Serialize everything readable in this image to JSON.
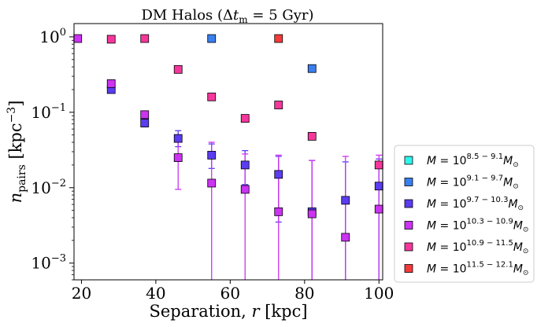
{
  "chart_data": {
    "type": "scatter",
    "title": "DM Halos (Δt_m = 5 Gyr)",
    "title_parts": {
      "pre": "DM Halos (Δ",
      "t": "t",
      "sub": "m",
      "post": " = 5 Gyr)"
    },
    "xlabel": "Separation, r [kpc]",
    "xlabel_parts": {
      "pre": "Separation, ",
      "var": "r",
      "post": " [kpc]"
    },
    "ylabel": "n_pairs [kpc^-3]",
    "ylabel_parts": {
      "var": "n",
      "sub": "pairs",
      "unit_pre": " [kpc",
      "sup": "−3",
      "unit_post": "]"
    },
    "xlim": [
      18,
      101
    ],
    "ylim": [
      0.0006,
      1.5
    ],
    "yscale": "log",
    "xticks": [
      20,
      40,
      60,
      80,
      100
    ],
    "yticks": [
      {
        "value": 0.001,
        "mant": "10",
        "exp": "−3"
      },
      {
        "value": 0.01,
        "mant": "10",
        "exp": "−2"
      },
      {
        "value": 0.1,
        "mant": "10",
        "exp": "−1"
      },
      {
        "value": 1,
        "mant": "10",
        "exp": "0"
      }
    ],
    "legend_position": "outside-right",
    "series": [
      {
        "name": "M = 10^8.5−9.1 M⊙",
        "exp": "8.5 − 9.1",
        "color": "#2ff5ee",
        "points": []
      },
      {
        "name": "M = 10^9.1−9.7 M⊙",
        "exp": "9.1 − 9.7",
        "color": "#3a7ff0",
        "points": [
          {
            "x": 55,
            "y": 0.95
          },
          {
            "x": 82,
            "y": 0.38
          }
        ]
      },
      {
        "name": "M = 10^9.7−10.3 M⊙",
        "exp": "9.7 − 10.3",
        "color": "#5b3cf0",
        "points": [
          {
            "x": 28,
            "y": 0.2
          },
          {
            "x": 37,
            "y": 0.072,
            "lo": 0.064,
            "hi": 0.082
          },
          {
            "x": 46,
            "y": 0.045,
            "lo": 0.035,
            "hi": 0.057
          },
          {
            "x": 55,
            "y": 0.027,
            "lo": 0.018,
            "hi": 0.038
          },
          {
            "x": 64,
            "y": 0.02,
            "lo": 0.011,
            "hi": 0.031
          },
          {
            "x": 73,
            "y": 0.015,
            "lo": 0.0035,
            "hi": 0.026
          },
          {
            "x": 82,
            "y": 0.0048,
            "lo": 0.0006,
            "hi": 0.023
          },
          {
            "x": 91,
            "y": 0.0068,
            "lo": 0.0006,
            "hi": 0.022
          },
          {
            "x": 100,
            "y": 0.0105,
            "lo": 0.0006,
            "hi": 0.024
          }
        ]
      },
      {
        "name": "M = 10^10.3−10.9 M⊙",
        "exp": "10.3 − 10.9",
        "color": "#cc33f2",
        "points": [
          {
            "x": 19,
            "y": 0.95
          },
          {
            "x": 28,
            "y": 0.24
          },
          {
            "x": 37,
            "y": 0.093
          },
          {
            "x": 46,
            "y": 0.025,
            "lo": 0.0095,
            "hi": 0.042
          },
          {
            "x": 55,
            "y": 0.0115,
            "lo": 0.0006,
            "hi": 0.04
          },
          {
            "x": 64,
            "y": 0.0095,
            "lo": 0.0006,
            "hi": 0.028
          },
          {
            "x": 73,
            "y": 0.0048,
            "lo": 0.0006,
            "hi": 0.027
          },
          {
            "x": 82,
            "y": 0.0045,
            "lo": 0.0006,
            "hi": 0.023
          },
          {
            "x": 91,
            "y": 0.0022,
            "lo": 0.0006,
            "hi": 0.026
          },
          {
            "x": 100,
            "y": 0.0052,
            "lo": 0.0006,
            "hi": 0.027
          }
        ]
      },
      {
        "name": "M = 10^10.9−11.5 M⊙",
        "exp": "10.9 − 11.5",
        "color": "#f5379c",
        "points": [
          {
            "x": 28,
            "y": 0.93
          },
          {
            "x": 37,
            "y": 0.95
          },
          {
            "x": 46,
            "y": 0.37
          },
          {
            "x": 55,
            "y": 0.16
          },
          {
            "x": 64,
            "y": 0.083
          },
          {
            "x": 73,
            "y": 0.125
          },
          {
            "x": 82,
            "y": 0.048
          },
          {
            "x": 100,
            "y": 0.02
          }
        ]
      },
      {
        "name": "M = 10^11.5−12.1 M⊙",
        "exp": "11.5 − 12.1",
        "color": "#f53a3a",
        "points": [
          {
            "x": 73,
            "y": 0.95
          }
        ]
      }
    ]
  }
}
